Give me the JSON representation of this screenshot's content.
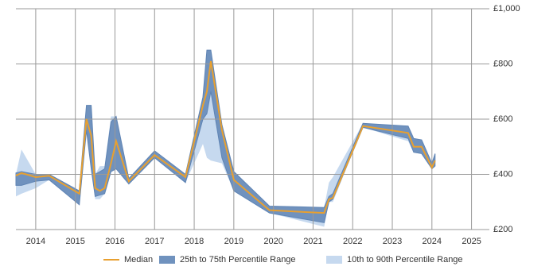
{
  "chart_data": {
    "type": "range-line",
    "x": [
      2013.5,
      2013.64,
      2014.0,
      2014.34,
      2015.1,
      2015.28,
      2015.4,
      2015.5,
      2015.62,
      2015.74,
      2015.9,
      2016.03,
      2016.35,
      2017.0,
      2017.78,
      2018.22,
      2018.32,
      2018.42,
      2018.7,
      2019.0,
      2019.9,
      2021.28,
      2021.4,
      2021.5,
      2022.26,
      2023.4,
      2023.54,
      2023.74,
      2024.0,
      2024.08
    ],
    "series": [
      {
        "name": "Median",
        "color": "#e8a030",
        "values": [
          395,
          405,
          390,
          395,
          330,
          600,
          540,
          350,
          340,
          350,
          440,
          520,
          375,
          470,
          390,
          650,
          700,
          810,
          560,
          380,
          270,
          260,
          310,
          315,
          575,
          550,
          500,
          500,
          425,
          450
        ]
      }
    ],
    "bands": [
      {
        "name": "10th to 90th Percentile Range",
        "color": "#c6d9ef",
        "low": [
          320,
          330,
          350,
          380,
          290,
          560,
          420,
          310,
          310,
          330,
          410,
          420,
          365,
          460,
          370,
          510,
          460,
          450,
          440,
          340,
          260,
          210,
          300,
          300,
          570,
          520,
          480,
          475,
          420,
          430
        ],
        "high": [
          400,
          490,
          400,
          400,
          340,
          650,
          650,
          400,
          430,
          430,
          610,
          610,
          385,
          485,
          400,
          680,
          850,
          850,
          580,
          410,
          285,
          280,
          370,
          390,
          585,
          575,
          530,
          525,
          440,
          475
        ]
      },
      {
        "name": "25th to 75th Percentile Range",
        "color": "#7092be",
        "low": [
          360,
          360,
          375,
          380,
          290,
          560,
          420,
          320,
          325,
          330,
          410,
          420,
          365,
          460,
          370,
          600,
          620,
          700,
          460,
          340,
          260,
          225,
          300,
          310,
          570,
          530,
          480,
          475,
          420,
          430
        ],
        "high": [
          405,
          410,
          400,
          400,
          340,
          650,
          650,
          400,
          410,
          420,
          590,
          610,
          385,
          485,
          400,
          680,
          850,
          850,
          580,
          410,
          285,
          280,
          320,
          330,
          585,
          575,
          530,
          525,
          440,
          475
        ]
      }
    ],
    "xlim": [
      2013.5,
      2025.45
    ],
    "xticks": [
      2014,
      2015,
      2016,
      2017,
      2018,
      2019,
      2020,
      2021,
      2022,
      2023,
      2024,
      2025
    ],
    "ylim": [
      200,
      1000
    ],
    "yticks": [
      {
        "value": 200,
        "label": "£200"
      },
      {
        "value": 400,
        "label": "£400"
      },
      {
        "value": 600,
        "label": "£600"
      },
      {
        "value": 800,
        "label": "£800"
      },
      {
        "value": 1000,
        "label": "£1,000"
      }
    ],
    "grid": true
  }
}
